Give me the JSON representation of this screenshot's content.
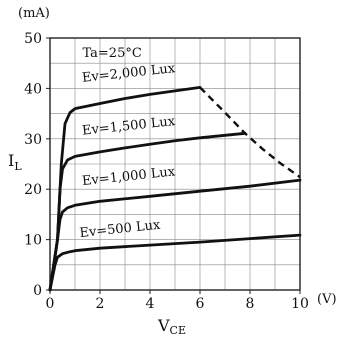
{
  "chart_data": {
    "type": "line",
    "y_unit": "(mA)",
    "x_unit": "(V)",
    "xlabel_main": "V",
    "xlabel_sub": "CE",
    "ylabel": "I",
    "ylabel_sub": "L",
    "annotation": "Ta=25°C",
    "xlim": [
      0,
      10
    ],
    "ylim": [
      0,
      50
    ],
    "x_ticks": [
      0,
      2,
      4,
      6,
      8,
      10
    ],
    "y_ticks": [
      0,
      10,
      20,
      30,
      40,
      50
    ],
    "x_tick_labels": [
      "0",
      "2",
      "4",
      "6",
      "8",
      "10"
    ],
    "y_tick_labels": [
      "0",
      "10",
      "20",
      "30",
      "40",
      "50"
    ],
    "grid": true,
    "series": [
      {
        "name": "Ev=2,000 Lux",
        "x": [
          0,
          0.3,
          0.45,
          0.6,
          0.8,
          1.0,
          2,
          3,
          4,
          5,
          6
        ],
        "y": [
          0,
          10,
          25,
          33,
          35.2,
          36,
          37,
          38,
          38.8,
          39.5,
          40.2
        ]
      },
      {
        "name": "Ev=1,500 Lux",
        "x": [
          0,
          0.3,
          0.4,
          0.5,
          0.7,
          1.0,
          2,
          3,
          4,
          5,
          6,
          7,
          7.8
        ],
        "y": [
          0,
          10,
          20,
          24,
          25.8,
          26.5,
          27.4,
          28.2,
          28.9,
          29.6,
          30.2,
          30.7,
          31.1
        ]
      },
      {
        "name": "Ev=1,000 Lux",
        "x": [
          0,
          0.3,
          0.4,
          0.5,
          0.7,
          1.0,
          2,
          4,
          6,
          8,
          10
        ],
        "y": [
          0,
          10,
          14,
          15.5,
          16.3,
          16.8,
          17.6,
          18.6,
          19.6,
          20.6,
          21.8
        ]
      },
      {
        "name": "Ev=500 Lux",
        "x": [
          0,
          0.2,
          0.3,
          0.5,
          0.8,
          1.0,
          2,
          4,
          6,
          8,
          10
        ],
        "y": [
          0,
          5,
          6.5,
          7.2,
          7.6,
          7.8,
          8.3,
          8.9,
          9.5,
          10.2,
          10.9
        ]
      }
    ],
    "limit_curve": {
      "style": "dashed",
      "x": [
        6,
        7,
        7.8,
        8.5,
        9.2,
        10
      ],
      "y": [
        40.2,
        35.2,
        31.1,
        28.0,
        25.2,
        22.4
      ]
    }
  }
}
